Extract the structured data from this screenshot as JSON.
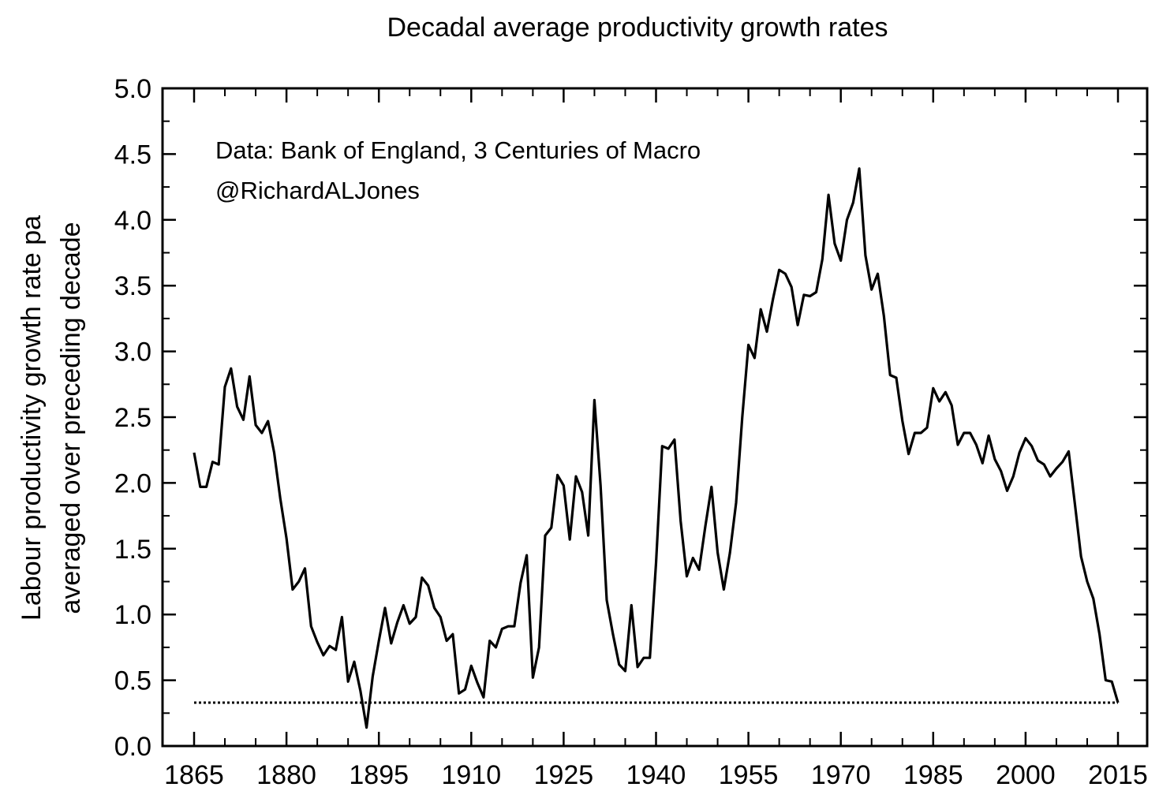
{
  "chart_data": {
    "type": "line",
    "title": "Decadal average productivity growth rates",
    "ylabel_lines": [
      "Labour productivity growth rate pa",
      "averaged over preceding decade"
    ],
    "xlabel": "",
    "annotations": [
      "Data: Bank of England, 3 Centuries of Macro",
      "@RichardALJones"
    ],
    "xlim": [
      1865,
      2015
    ],
    "ylim": [
      0,
      5
    ],
    "x_ticks": [
      1865,
      1880,
      1895,
      1910,
      1925,
      1940,
      1955,
      1970,
      1985,
      2000,
      2015
    ],
    "x_tick_labels": [
      "1865",
      "1880",
      "1895",
      "1910",
      "1925",
      "1940",
      "1955",
      "1970",
      "1985",
      "2000",
      "2015"
    ],
    "y_ticks": [
      0,
      0.5,
      1,
      1.5,
      2,
      2.5,
      3,
      3.5,
      4,
      4.5,
      5
    ],
    "y_tick_labels": [
      "0.0",
      "0.5",
      "1.0",
      "1.5",
      "2.0",
      "2.5",
      "3.0",
      "3.5",
      "4.0",
      "4.5",
      "5.0"
    ],
    "grid": false,
    "colors": {
      "line": "#000000",
      "reference": "#000000"
    },
    "series": [
      {
        "style": "solid",
        "x": [
          1865,
          1866,
          1867,
          1868,
          1869,
          1870,
          1871,
          1872,
          1873,
          1874,
          1875,
          1876,
          1877,
          1878,
          1879,
          1880,
          1881,
          1882,
          1883,
          1884,
          1885,
          1886,
          1887,
          1888,
          1889,
          1890,
          1891,
          1892,
          1893,
          1894,
          1895,
          1896,
          1897,
          1898,
          1899,
          1900,
          1901,
          1902,
          1903,
          1904,
          1905,
          1906,
          1907,
          1908,
          1909,
          1910,
          1911,
          1912,
          1913,
          1914,
          1915,
          1916,
          1917,
          1918,
          1919,
          1920,
          1921,
          1922,
          1923,
          1924,
          1925,
          1926,
          1927,
          1928,
          1929,
          1930,
          1931,
          1932,
          1933,
          1934,
          1935,
          1936,
          1937,
          1938,
          1939,
          1940,
          1941,
          1942,
          1943,
          1944,
          1945,
          1946,
          1947,
          1948,
          1949,
          1950,
          1951,
          1952,
          1953,
          1954,
          1955,
          1956,
          1957,
          1958,
          1959,
          1960,
          1961,
          1962,
          1963,
          1964,
          1965,
          1966,
          1967,
          1968,
          1969,
          1970,
          1971,
          1972,
          1973,
          1974,
          1975,
          1976,
          1977,
          1978,
          1979,
          1980,
          1981,
          1982,
          1983,
          1984,
          1985,
          1986,
          1987,
          1988,
          1989,
          1990,
          1991,
          1992,
          1993,
          1994,
          1995,
          1996,
          1997,
          1998,
          1999,
          2000,
          2001,
          2002,
          2003,
          2004,
          2005,
          2006,
          2007,
          2008,
          2009,
          2010,
          2011,
          2012,
          2013,
          2014,
          2015
        ],
        "y": [
          2.23,
          1.97,
          1.97,
          2.16,
          2.14,
          2.73,
          2.87,
          2.58,
          2.48,
          2.81,
          2.44,
          2.38,
          2.47,
          2.23,
          1.88,
          1.58,
          1.19,
          1.25,
          1.35,
          0.91,
          0.79,
          0.69,
          0.76,
          0.73,
          0.98,
          0.49,
          0.64,
          0.42,
          0.14,
          0.53,
          0.8,
          1.05,
          0.78,
          0.94,
          1.07,
          0.93,
          0.98,
          1.28,
          1.22,
          1.05,
          0.98,
          0.8,
          0.85,
          0.4,
          0.43,
          0.61,
          0.48,
          0.37,
          0.8,
          0.75,
          0.89,
          0.91,
          0.91,
          1.24,
          1.45,
          0.52,
          0.75,
          1.6,
          1.66,
          2.06,
          1.98,
          1.57,
          2.05,
          1.93,
          1.6,
          2.63,
          1.98,
          1.11,
          0.85,
          0.62,
          0.57,
          1.07,
          0.6,
          0.67,
          0.67,
          1.39,
          2.28,
          2.26,
          2.33,
          1.71,
          1.29,
          1.43,
          1.34,
          1.67,
          1.97,
          1.47,
          1.19,
          1.47,
          1.85,
          2.5,
          3.05,
          2.95,
          3.32,
          3.15,
          3.4,
          3.62,
          3.59,
          3.49,
          3.2,
          3.43,
          3.42,
          3.45,
          3.7,
          4.19,
          3.82,
          3.69,
          4.0,
          4.13,
          4.39,
          3.73,
          3.47,
          3.59,
          3.27,
          2.82,
          2.8,
          2.47,
          2.22,
          2.38,
          2.38,
          2.42,
          2.72,
          2.62,
          2.69,
          2.59,
          2.29,
          2.38,
          2.38,
          2.29,
          2.15,
          2.36,
          2.18,
          2.09,
          1.94,
          2.05,
          2.23,
          2.34,
          2.28,
          2.17,
          2.14,
          2.05,
          2.11,
          2.16,
          2.24,
          1.84,
          1.44,
          1.25,
          1.12,
          0.85,
          0.5,
          0.49,
          0.33
        ]
      },
      {
        "style": "dotted",
        "x": [
          1865,
          2015
        ],
        "y": [
          0.33,
          0.33
        ]
      }
    ]
  }
}
